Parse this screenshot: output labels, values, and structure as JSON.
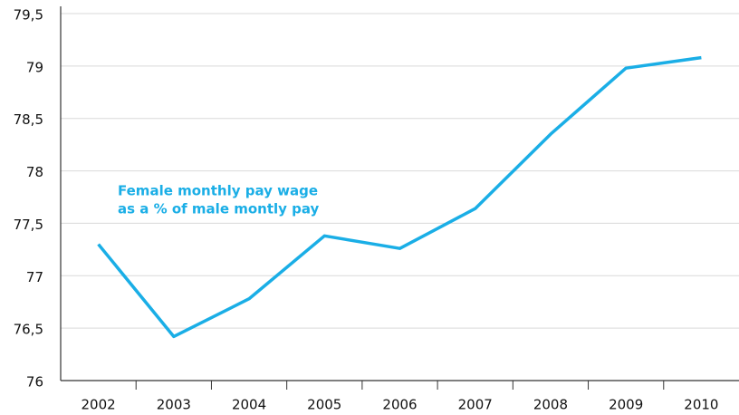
{
  "chart_data": {
    "type": "line",
    "annotation": [
      "Female monthly pay wage",
      "as a % of male montly pay"
    ],
    "categories": [
      "2002",
      "2003",
      "2004",
      "2005",
      "2006",
      "2007",
      "2008",
      "2009",
      "2010"
    ],
    "series": [
      {
        "color": "#1aaee6",
        "values": [
          77.3,
          76.42,
          76.78,
          77.38,
          77.26,
          77.64,
          78.35,
          78.98,
          79.08
        ]
      }
    ],
    "ylim": [
      76,
      79.5
    ],
    "yticks": [
      76,
      {
        "value": 76.5,
        "label": "76,5"
      },
      77,
      {
        "value": 77.5,
        "label": "77,5"
      },
      78,
      {
        "value": 78.5,
        "label": "78,5"
      },
      79,
      {
        "value": 79.5,
        "label": "79,5"
      }
    ],
    "grid": true
  }
}
